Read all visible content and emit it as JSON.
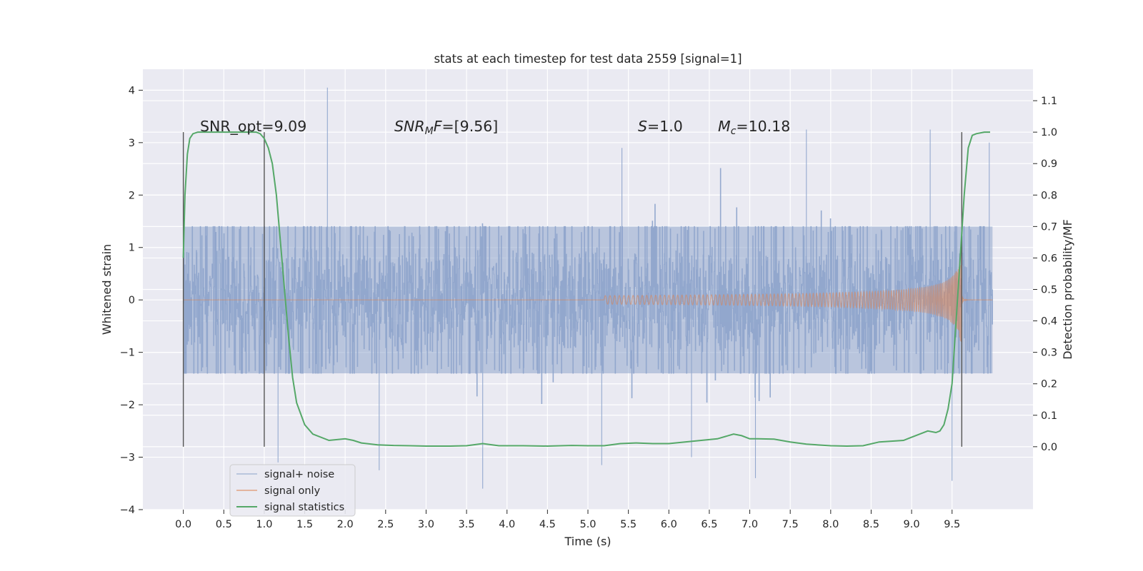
{
  "chart_data": {
    "type": "line",
    "title": "stats at each timestep for test data 2559 [signal=1]",
    "xlabel": "Time (s)",
    "ylabel": "Whitened strain",
    "y2label": "Detection probability/MF",
    "xlim": [
      -0.5,
      10.5
    ],
    "ylim": [
      -4,
      4.4
    ],
    "y2lim": [
      -0.2,
      1.2
    ],
    "xticks": [
      0.0,
      0.5,
      1.0,
      1.5,
      2.0,
      2.5,
      3.0,
      3.5,
      4.0,
      4.5,
      5.0,
      5.5,
      6.0,
      6.5,
      7.0,
      7.5,
      8.0,
      8.5,
      9.0,
      9.5
    ],
    "xtick_labels": [
      "0.0",
      "0.5",
      "1.0",
      "1.5",
      "2.0",
      "2.5",
      "3.0",
      "3.5",
      "4.0",
      "4.5",
      "5.0",
      "5.5",
      "6.0",
      "6.5",
      "7.0",
      "7.5",
      "8.0",
      "8.5",
      "9.0",
      "9.5"
    ],
    "yticks": [
      -4,
      -3,
      -2,
      -1,
      0,
      1,
      2,
      3,
      4
    ],
    "ytick_labels": [
      "−4",
      "−3",
      "−2",
      "−1",
      "0",
      "1",
      "2",
      "3",
      "4"
    ],
    "y2ticks": [
      0.0,
      0.1,
      0.2,
      0.3,
      0.4,
      0.5,
      0.6,
      0.7,
      0.8,
      0.9,
      1.0,
      1.1
    ],
    "y2tick_labels": [
      "0.0",
      "0.1",
      "0.2",
      "0.3",
      "0.4",
      "0.5",
      "0.6",
      "0.7",
      "0.8",
      "0.9",
      "1.0",
      "1.1"
    ],
    "grid": true,
    "legend_position": "lower-left",
    "annotations": {
      "snr_opt": "SNR_opt=9.09",
      "snr_mf_sym": "SNR",
      "snr_mf_sub": "M",
      "snr_mf_rest": "F",
      "snr_mf_value": "=[9.56]",
      "s_sym": "S",
      "s_value": "=1.0",
      "mc_sym": "M",
      "mc_sub": "c",
      "mc_value": "=10.18"
    },
    "vertical_markers": [
      {
        "x": 0.0,
        "y2_range": [
          0.0,
          1.0
        ]
      },
      {
        "x": 1.0,
        "y2_range": [
          0.0,
          1.0
        ]
      },
      {
        "x": 9.62,
        "y2_range": [
          0.0,
          1.0
        ]
      }
    ],
    "series": [
      {
        "name": "signal+ noise",
        "color": "#8fa5cc",
        "axis": "left",
        "x_range": [
          0.0,
          10.0
        ],
        "typical_envelope": [
          -1.4,
          1.4
        ],
        "peaks": [
          {
            "x": 1.78,
            "y": 4.05
          },
          {
            "x": 1.17,
            "y": -3.1
          },
          {
            "x": 3.7,
            "y": -3.6
          },
          {
            "x": 2.42,
            "y": -3.25
          },
          {
            "x": 7.07,
            "y": -3.4
          },
          {
            "x": 9.5,
            "y": -3.45
          },
          {
            "x": 7.7,
            "y": 3.25
          },
          {
            "x": 9.23,
            "y": 3.25
          },
          {
            "x": 5.42,
            "y": 2.9
          },
          {
            "x": 9.96,
            "y": 3.0
          },
          {
            "x": 5.17,
            "y": -3.15
          },
          {
            "x": 6.28,
            "y": -3.0
          }
        ]
      },
      {
        "name": "signal only",
        "color": "#dd8452",
        "axis": "left",
        "chirp_start": 5.2,
        "merger_time": 9.62,
        "peak_amplitude": 1.0
      },
      {
        "name": "signal statistics",
        "color": "#55a868",
        "axis": "right",
        "x": [
          0.0,
          0.02,
          0.05,
          0.08,
          0.12,
          0.18,
          0.25,
          0.4,
          0.6,
          0.8,
          0.9,
          0.95,
          1.0,
          1.05,
          1.1,
          1.15,
          1.2,
          1.25,
          1.3,
          1.35,
          1.4,
          1.5,
          1.6,
          1.8,
          2.0,
          2.1,
          2.2,
          2.4,
          2.6,
          2.8,
          3.0,
          3.3,
          3.5,
          3.7,
          3.9,
          4.2,
          4.5,
          4.8,
          5.0,
          5.2,
          5.4,
          5.6,
          5.8,
          6.0,
          6.2,
          6.4,
          6.6,
          6.8,
          6.9,
          7.0,
          7.1,
          7.3,
          7.5,
          7.7,
          8.0,
          8.2,
          8.4,
          8.6,
          8.9,
          9.0,
          9.1,
          9.2,
          9.3,
          9.35,
          9.4,
          9.45,
          9.5,
          9.55,
          9.6,
          9.65,
          9.7,
          9.75,
          9.8,
          9.9,
          9.97
        ],
        "y": [
          0.6,
          0.8,
          0.93,
          0.98,
          0.995,
          1.0,
          1.0,
          1.0,
          1.0,
          1.0,
          1.0,
          0.995,
          0.98,
          0.95,
          0.9,
          0.8,
          0.65,
          0.5,
          0.35,
          0.22,
          0.14,
          0.07,
          0.04,
          0.02,
          0.025,
          0.02,
          0.012,
          0.006,
          0.004,
          0.003,
          0.002,
          0.002,
          0.003,
          0.01,
          0.003,
          0.003,
          0.002,
          0.004,
          0.003,
          0.003,
          0.01,
          0.012,
          0.01,
          0.01,
          0.015,
          0.02,
          0.025,
          0.04,
          0.035,
          0.025,
          0.025,
          0.024,
          0.015,
          0.008,
          0.003,
          0.002,
          0.003,
          0.015,
          0.02,
          0.03,
          0.04,
          0.05,
          0.045,
          0.05,
          0.07,
          0.12,
          0.2,
          0.4,
          0.6,
          0.8,
          0.95,
          0.99,
          0.995,
          1.0,
          1.0
        ]
      }
    ]
  }
}
